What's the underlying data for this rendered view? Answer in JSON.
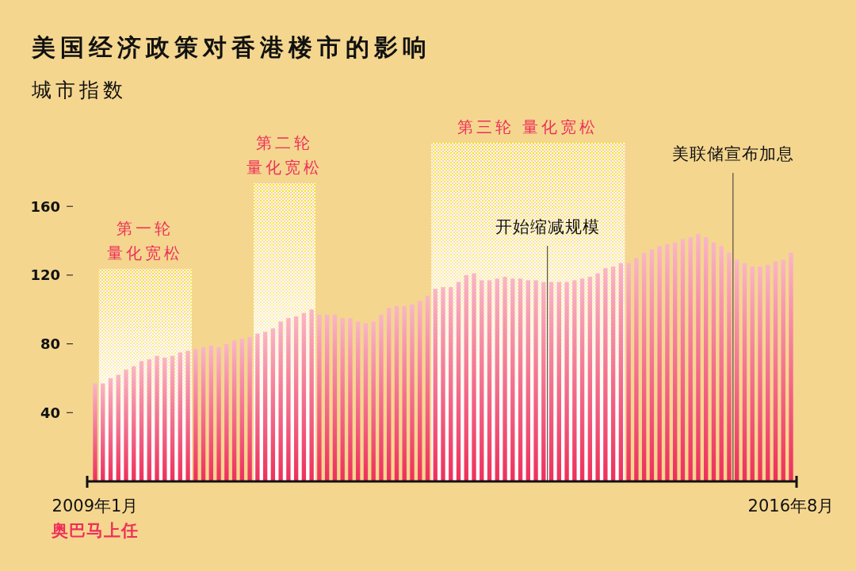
{
  "chart_data": {
    "type": "bar",
    "title": "美国经济政策对香港楼市的影响",
    "subtitle": "城市指数",
    "categories": [
      "2009年1月",
      null,
      null,
      null,
      null,
      null,
      null,
      null,
      null,
      null,
      null,
      null,
      null,
      null,
      null,
      null,
      null,
      null,
      null,
      null,
      null,
      null,
      null,
      null,
      null,
      null,
      null,
      null,
      null,
      null,
      null,
      null,
      null,
      null,
      null,
      null,
      null,
      null,
      null,
      null,
      null,
      null,
      null,
      null,
      null,
      null,
      null,
      null,
      null,
      null,
      null,
      null,
      null,
      null,
      null,
      null,
      null,
      null,
      null,
      null,
      null,
      null,
      null,
      null,
      null,
      null,
      null,
      null,
      null,
      null,
      null,
      null,
      null,
      null,
      null,
      null,
      null,
      null,
      null,
      null,
      null,
      null,
      null,
      null,
      null,
      null,
      null,
      null,
      null,
      null,
      "2016年8月"
    ],
    "values": [
      57,
      57,
      60,
      62,
      65,
      67,
      70,
      71,
      73,
      72,
      73,
      75,
      76,
      77,
      78,
      79,
      78,
      80,
      82,
      83,
      84,
      86,
      87,
      89,
      93,
      95,
      96,
      98,
      100,
      97,
      97,
      97,
      95,
      95,
      93,
      92,
      93,
      97,
      101,
      102,
      102,
      103,
      105,
      108,
      112,
      113,
      113,
      116,
      120,
      121,
      117,
      117,
      118,
      119,
      118,
      118,
      117,
      117,
      116,
      116,
      116,
      116,
      117,
      118,
      119,
      121,
      124,
      125,
      127,
      127,
      130,
      133,
      135,
      137,
      138,
      139,
      141,
      142,
      144,
      142,
      139,
      137,
      133,
      129,
      127,
      125,
      125,
      126,
      128,
      129,
      133
    ],
    "color": "#ee2f5a",
    "ylim": [
      0,
      160
    ],
    "yticks": [
      40,
      80,
      120,
      160
    ],
    "annotations": [
      "第一轮量化宽松",
      "第二轮量化宽松",
      "第三轮  量化宽松",
      "开始缩减规模",
      "美联储宣布加息",
      "奥巴马上任"
    ]
  }
}
